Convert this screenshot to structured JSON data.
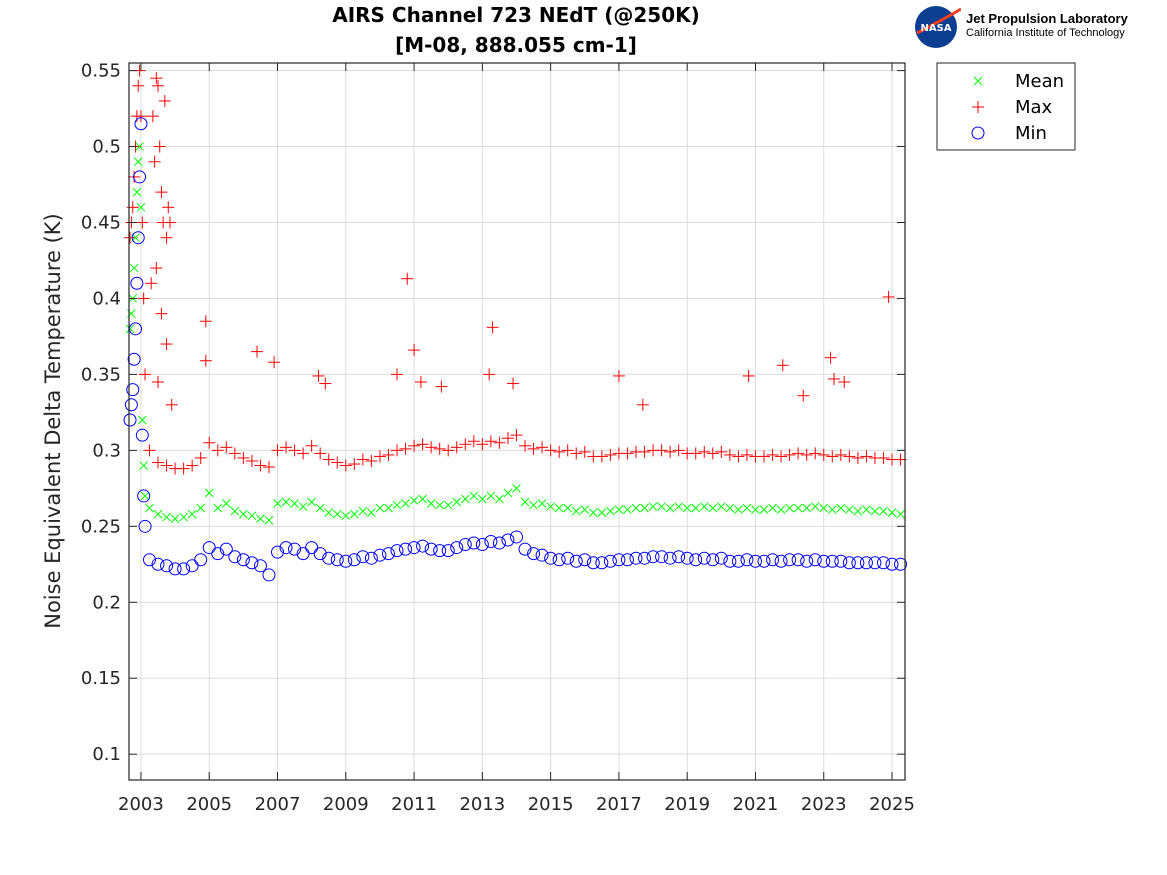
{
  "logo": {
    "name": "Jet Propulsion Laboratory",
    "subtitle": "California Institute of Technology",
    "badge": "NASA"
  },
  "chart_data": {
    "type": "scatter",
    "title": [
      "AIRS Channel 723 NEdT (@250K)",
      "[M-08, 888.055 cm-1]"
    ],
    "xlabel": "",
    "ylabel": "Noise Equivalent Delta Temperature (K)",
    "xlim": [
      2002.65,
      2025.38
    ],
    "ylim": [
      0.083,
      0.555
    ],
    "grid": true,
    "legend_position": "outside-top-right",
    "xticks": [
      2003,
      2005,
      2007,
      2009,
      2011,
      2013,
      2015,
      2017,
      2019,
      2021,
      2023,
      2025
    ],
    "xtick_labels": [
      "2003",
      "2005",
      "2007",
      "2009",
      "2011",
      "2013",
      "2015",
      "2017",
      "2019",
      "2021",
      "2023",
      "2025"
    ],
    "yticks": [
      0.1,
      0.15,
      0.2,
      0.25,
      0.3,
      0.35,
      0.4,
      0.45,
      0.5,
      0.55
    ],
    "ytick_labels": [
      "0.1",
      "0.15",
      "0.2",
      "0.25",
      "0.3",
      "0.35",
      "0.4",
      "0.45",
      "0.5",
      "0.55"
    ],
    "early_x": [
      2002.68,
      2002.72,
      2002.76,
      2002.8,
      2002.84,
      2002.88,
      2002.92,
      2002.96,
      2003.0,
      2003.04,
      2003.08,
      2003.12
    ],
    "regular_x_start": 2003.25,
    "regular_x_step": 0.25,
    "series": [
      {
        "name": "Mean",
        "marker": "x",
        "color": "#00ff00",
        "early": [
          0.38,
          0.39,
          0.4,
          0.42,
          0.44,
          0.47,
          0.49,
          0.5,
          0.46,
          0.32,
          0.29,
          0.27
        ],
        "values": [
          0.262,
          0.258,
          0.256,
          0.255,
          0.256,
          0.258,
          0.262,
          0.272,
          0.262,
          0.265,
          0.26,
          0.258,
          0.257,
          0.255,
          0.254,
          0.265,
          0.266,
          0.265,
          0.263,
          0.266,
          0.262,
          0.259,
          0.258,
          0.257,
          0.258,
          0.26,
          0.259,
          0.262,
          0.262,
          0.264,
          0.265,
          0.267,
          0.268,
          0.265,
          0.264,
          0.264,
          0.266,
          0.268,
          0.27,
          0.268,
          0.27,
          0.268,
          0.272,
          0.275,
          0.266,
          0.264,
          0.265,
          0.263,
          0.262,
          0.262,
          0.26,
          0.261,
          0.259,
          0.259,
          0.26,
          0.261,
          0.261,
          0.262,
          0.262,
          0.263,
          0.263,
          0.262,
          0.263,
          0.262,
          0.262,
          0.263,
          0.262,
          0.263,
          0.262,
          0.261,
          0.262,
          0.261,
          0.261,
          0.262,
          0.261,
          0.262,
          0.262,
          0.262,
          0.263,
          0.262,
          0.261,
          0.262,
          0.261,
          0.26,
          0.261,
          0.26,
          0.26,
          0.259,
          0.258
        ],
        "extra": []
      },
      {
        "name": "Max",
        "marker": "+",
        "color": "#ff0000",
        "early": [
          0.44,
          0.45,
          0.46,
          0.48,
          0.5,
          0.52,
          0.54,
          0.55,
          0.52,
          0.45,
          0.4,
          0.35
        ],
        "values": [
          0.3,
          0.292,
          0.29,
          0.288,
          0.288,
          0.29,
          0.295,
          0.305,
          0.3,
          0.302,
          0.298,
          0.295,
          0.293,
          0.29,
          0.289,
          0.3,
          0.302,
          0.3,
          0.298,
          0.303,
          0.298,
          0.294,
          0.292,
          0.29,
          0.291,
          0.294,
          0.293,
          0.296,
          0.297,
          0.3,
          0.301,
          0.303,
          0.304,
          0.302,
          0.301,
          0.3,
          0.302,
          0.304,
          0.306,
          0.304,
          0.306,
          0.305,
          0.308,
          0.31,
          0.303,
          0.301,
          0.302,
          0.3,
          0.299,
          0.3,
          0.298,
          0.299,
          0.296,
          0.296,
          0.297,
          0.298,
          0.298,
          0.299,
          0.299,
          0.3,
          0.3,
          0.299,
          0.3,
          0.298,
          0.298,
          0.299,
          0.298,
          0.299,
          0.297,
          0.296,
          0.297,
          0.296,
          0.296,
          0.297,
          0.296,
          0.297,
          0.298,
          0.297,
          0.298,
          0.297,
          0.296,
          0.297,
          0.296,
          0.295,
          0.296,
          0.295,
          0.295,
          0.294,
          0.294
        ],
        "extra": [
          [
            2003.35,
            0.52
          ],
          [
            2003.45,
            0.545
          ],
          [
            2003.5,
            0.54
          ],
          [
            2003.55,
            0.5
          ],
          [
            2003.6,
            0.47
          ],
          [
            2003.65,
            0.45
          ],
          [
            2003.7,
            0.53
          ],
          [
            2003.75,
            0.44
          ],
          [
            2003.8,
            0.46
          ],
          [
            2003.4,
            0.49
          ],
          [
            2003.3,
            0.41
          ],
          [
            2003.6,
            0.39
          ],
          [
            2003.75,
            0.37
          ],
          [
            2003.5,
            0.345
          ],
          [
            2003.85,
            0.45
          ],
          [
            2003.45,
            0.42
          ],
          [
            2003.9,
            0.33
          ],
          [
            2004.9,
            0.385
          ],
          [
            2004.9,
            0.359
          ],
          [
            2006.4,
            0.365
          ],
          [
            2006.9,
            0.358
          ],
          [
            2008.2,
            0.349
          ],
          [
            2008.4,
            0.344
          ],
          [
            2010.5,
            0.35
          ],
          [
            2010.8,
            0.413
          ],
          [
            2011.0,
            0.366
          ],
          [
            2011.2,
            0.345
          ],
          [
            2011.8,
            0.342
          ],
          [
            2013.2,
            0.35
          ],
          [
            2013.3,
            0.381
          ],
          [
            2013.9,
            0.344
          ],
          [
            2017.0,
            0.349
          ],
          [
            2017.7,
            0.33
          ],
          [
            2020.8,
            0.349
          ],
          [
            2021.8,
            0.356
          ],
          [
            2022.4,
            0.336
          ],
          [
            2023.2,
            0.361
          ],
          [
            2023.3,
            0.347
          ],
          [
            2023.6,
            0.345
          ],
          [
            2024.9,
            0.401
          ]
        ]
      },
      {
        "name": "Min",
        "marker": "o",
        "color": "#0000ff",
        "early": [
          0.32,
          0.33,
          0.34,
          0.36,
          0.38,
          0.41,
          0.44,
          0.48,
          0.515,
          0.31,
          0.27,
          0.25
        ],
        "values": [
          0.228,
          0.225,
          0.224,
          0.222,
          0.222,
          0.224,
          0.228,
          0.236,
          0.232,
          0.235,
          0.23,
          0.228,
          0.226,
          0.224,
          0.218,
          0.233,
          0.236,
          0.235,
          0.232,
          0.236,
          0.232,
          0.229,
          0.228,
          0.227,
          0.228,
          0.23,
          0.229,
          0.231,
          0.232,
          0.234,
          0.235,
          0.236,
          0.237,
          0.235,
          0.234,
          0.234,
          0.236,
          0.238,
          0.239,
          0.238,
          0.24,
          0.239,
          0.241,
          0.243,
          0.235,
          0.232,
          0.231,
          0.229,
          0.228,
          0.229,
          0.227,
          0.228,
          0.226,
          0.226,
          0.227,
          0.228,
          0.228,
          0.229,
          0.229,
          0.23,
          0.23,
          0.229,
          0.23,
          0.229,
          0.228,
          0.229,
          0.228,
          0.229,
          0.227,
          0.227,
          0.228,
          0.227,
          0.227,
          0.228,
          0.227,
          0.228,
          0.228,
          0.227,
          0.228,
          0.227,
          0.227,
          0.227,
          0.226,
          0.226,
          0.226,
          0.226,
          0.226,
          0.225,
          0.225
        ],
        "extra": []
      }
    ]
  }
}
